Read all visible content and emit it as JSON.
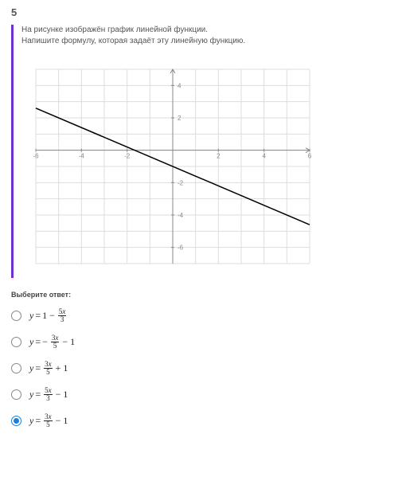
{
  "question_number": "5",
  "prompt_line1": "На рисунке изображён график линейной функции.",
  "prompt_line2": "Напишите формулу, которая задаёт эту линейную функцию.",
  "choose_label": "Выберите ответ:",
  "chart": {
    "type": "line",
    "xlim": [
      -6,
      6
    ],
    "ylim": [
      -7,
      5
    ],
    "xtick_step": 2,
    "ytick_step": 2,
    "xticks": [
      -6,
      -4,
      -2,
      2,
      4,
      6
    ],
    "yticks": [
      -6,
      -4,
      -2,
      2,
      4
    ],
    "background_color": "#ffffff",
    "grid_color": "#dddddd",
    "axis_color": "#888888",
    "line_color": "#000000",
    "line_points": [
      [
        -6,
        2.6
      ],
      [
        6,
        -4.6
      ]
    ],
    "label_fontsize": 8
  },
  "options": [
    {
      "y": "y",
      "eq": "=",
      "pre": "1 −",
      "frac_num": "5x",
      "frac_den": "3",
      "post": "",
      "selected": false
    },
    {
      "y": "y",
      "eq": "=",
      "pre": "−",
      "frac_num": "3x",
      "frac_den": "5",
      "post": "− 1",
      "selected": false
    },
    {
      "y": "y",
      "eq": "=",
      "pre": "",
      "frac_num": "3x",
      "frac_den": "5",
      "post": "+ 1",
      "selected": false
    },
    {
      "y": "y",
      "eq": "=",
      "pre": "",
      "frac_num": "5x",
      "frac_den": "3",
      "post": "− 1",
      "selected": false
    },
    {
      "y": "y",
      "eq": "=",
      "pre": "",
      "frac_num": "3x",
      "frac_den": "5",
      "post": "− 1",
      "selected": true
    }
  ]
}
